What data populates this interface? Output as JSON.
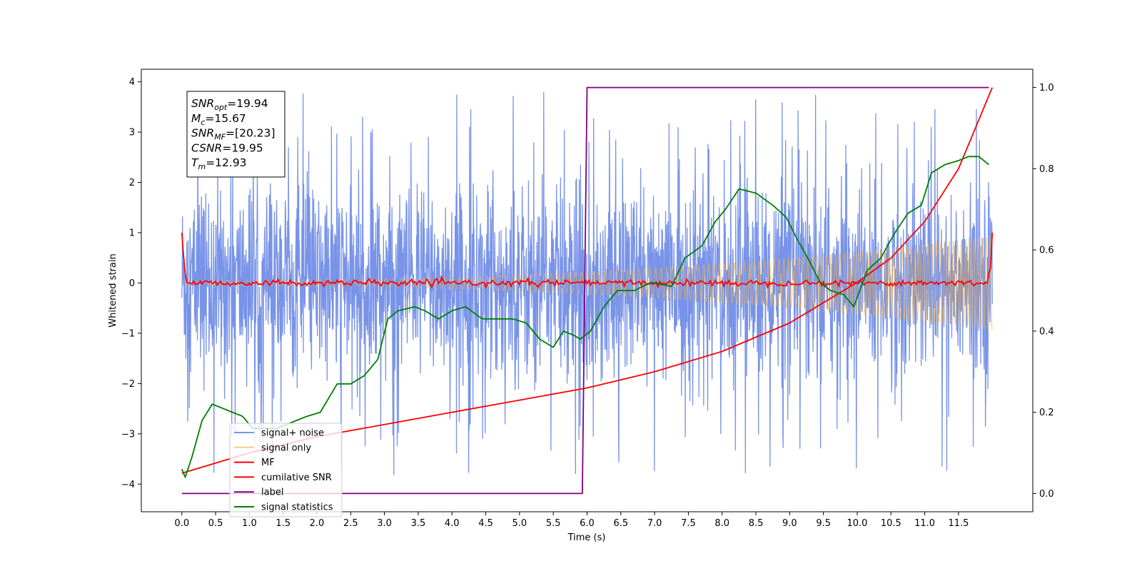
{
  "chart_data": {
    "type": "line",
    "xlabel": "Time (s)",
    "ylabel": "Whitened strain",
    "xlim": [
      -0.6,
      12.6
    ],
    "ylim": [
      -4.55,
      4.25
    ],
    "y2lim": [
      -0.045,
      1.045
    ],
    "x_ticks": [
      0.0,
      0.5,
      1.0,
      1.5,
      2.0,
      2.5,
      3.0,
      3.5,
      4.0,
      4.5,
      5.0,
      5.5,
      6.0,
      6.5,
      7.0,
      7.5,
      8.0,
      8.5,
      9.0,
      9.5,
      10.0,
      10.5,
      11.0,
      11.5
    ],
    "x_tick_labels": [
      "0.0",
      "0.5",
      "1.0",
      "1.5",
      "2.0",
      "2.5",
      "3.0",
      "3.5",
      "4.0",
      "4.5",
      "5.0",
      "5.5",
      "6.0",
      "6.5",
      "7.0",
      "7.5",
      "8.0",
      "8.5",
      "9.0",
      "9.5",
      "10.0",
      "10.5",
      "11.0",
      "11.5"
    ],
    "y_ticks": [
      4,
      3,
      2,
      1,
      0,
      -1,
      -2,
      -3,
      -4
    ],
    "y_tick_labels": [
      "4",
      "3",
      "2",
      "1",
      "0",
      "−1",
      "−2",
      "−3",
      "−4"
    ],
    "y2_ticks": [
      1.0,
      0.8,
      0.6,
      0.4,
      0.2,
      0.0
    ],
    "y2_tick_labels": [
      "1.0",
      "0.8",
      "0.6",
      "0.4",
      "0.2",
      "0.0"
    ],
    "grid": false,
    "legend_position": "lower-left",
    "annotation": {
      "lines": [
        {
          "sym": "SNR",
          "sub": "opt",
          "value": "=19.94"
        },
        {
          "sym": "M",
          "sub": "c",
          "value": "=15.67"
        },
        {
          "sym": "SNR",
          "sub": "MF",
          "value": "=[20.23]"
        },
        {
          "sym": "CSNR",
          "sub": "",
          "value": "=19.95"
        },
        {
          "sym": "T",
          "sub": "m",
          "value": "=12.93"
        }
      ]
    },
    "series": [
      {
        "name": "signal+ noise",
        "color": "#6d8ae6",
        "axis": "left",
        "kind": "noisy strain, amplitude about ±2, peaks to ±4"
      },
      {
        "name": "signal only",
        "color": "#f5b041",
        "axis": "left",
        "kind": "chirp, amplitude growing from 0.05 at 0 s to 0.95 at 12 s"
      },
      {
        "name": "MF",
        "color": "#ff0000",
        "axis": "left",
        "kind": "matched filter output near 0, spikes to 1 at both ends"
      },
      {
        "name": "cumilative SNR",
        "color": "#ff0000",
        "axis": "right",
        "x": [
          0.0,
          1.0,
          2.0,
          3.0,
          4.0,
          5.0,
          6.0,
          7.0,
          8.0,
          9.0,
          10.0,
          10.5,
          11.0,
          11.5,
          12.0
        ],
        "y": [
          0.05,
          0.1,
          0.14,
          0.17,
          0.2,
          0.23,
          0.26,
          0.3,
          0.35,
          0.42,
          0.52,
          0.58,
          0.67,
          0.8,
          1.0
        ]
      },
      {
        "name": "label",
        "color": "#800080",
        "axis": "right",
        "x": [
          0.0,
          5.93,
          6.0,
          11.95
        ],
        "y": [
          0.0,
          0.0,
          1.0,
          1.0
        ]
      },
      {
        "name": "signal statistics",
        "color": "#007f00",
        "axis": "right",
        "x": [
          0.0,
          0.05,
          0.15,
          0.3,
          0.45,
          0.6,
          0.75,
          0.9,
          1.05,
          1.2,
          1.4,
          1.55,
          1.7,
          1.85,
          2.05,
          2.3,
          2.5,
          2.7,
          2.9,
          3.05,
          3.2,
          3.45,
          3.6,
          3.8,
          4.0,
          4.2,
          4.45,
          4.7,
          4.9,
          5.1,
          5.3,
          5.5,
          5.65,
          5.8,
          5.9,
          6.05,
          6.25,
          6.45,
          6.7,
          6.95,
          7.25,
          7.45,
          7.7,
          7.9,
          8.05,
          8.25,
          8.5,
          8.75,
          8.95,
          9.1,
          9.3,
          9.45,
          9.6,
          9.8,
          9.95,
          10.15,
          10.35,
          10.55,
          10.75,
          10.95,
          11.1,
          11.3,
          11.5,
          11.65,
          11.8,
          11.95
        ],
        "y": [
          0.06,
          0.04,
          0.09,
          0.18,
          0.22,
          0.21,
          0.2,
          0.19,
          0.16,
          0.16,
          0.16,
          0.17,
          0.18,
          0.19,
          0.2,
          0.27,
          0.27,
          0.29,
          0.33,
          0.43,
          0.45,
          0.46,
          0.45,
          0.43,
          0.45,
          0.46,
          0.43,
          0.43,
          0.43,
          0.42,
          0.38,
          0.36,
          0.4,
          0.39,
          0.38,
          0.4,
          0.46,
          0.5,
          0.5,
          0.52,
          0.51,
          0.58,
          0.61,
          0.67,
          0.7,
          0.75,
          0.74,
          0.71,
          0.68,
          0.63,
          0.57,
          0.52,
          0.5,
          0.49,
          0.46,
          0.55,
          0.58,
          0.64,
          0.69,
          0.71,
          0.79,
          0.81,
          0.82,
          0.83,
          0.83,
          0.81
        ]
      }
    ]
  }
}
